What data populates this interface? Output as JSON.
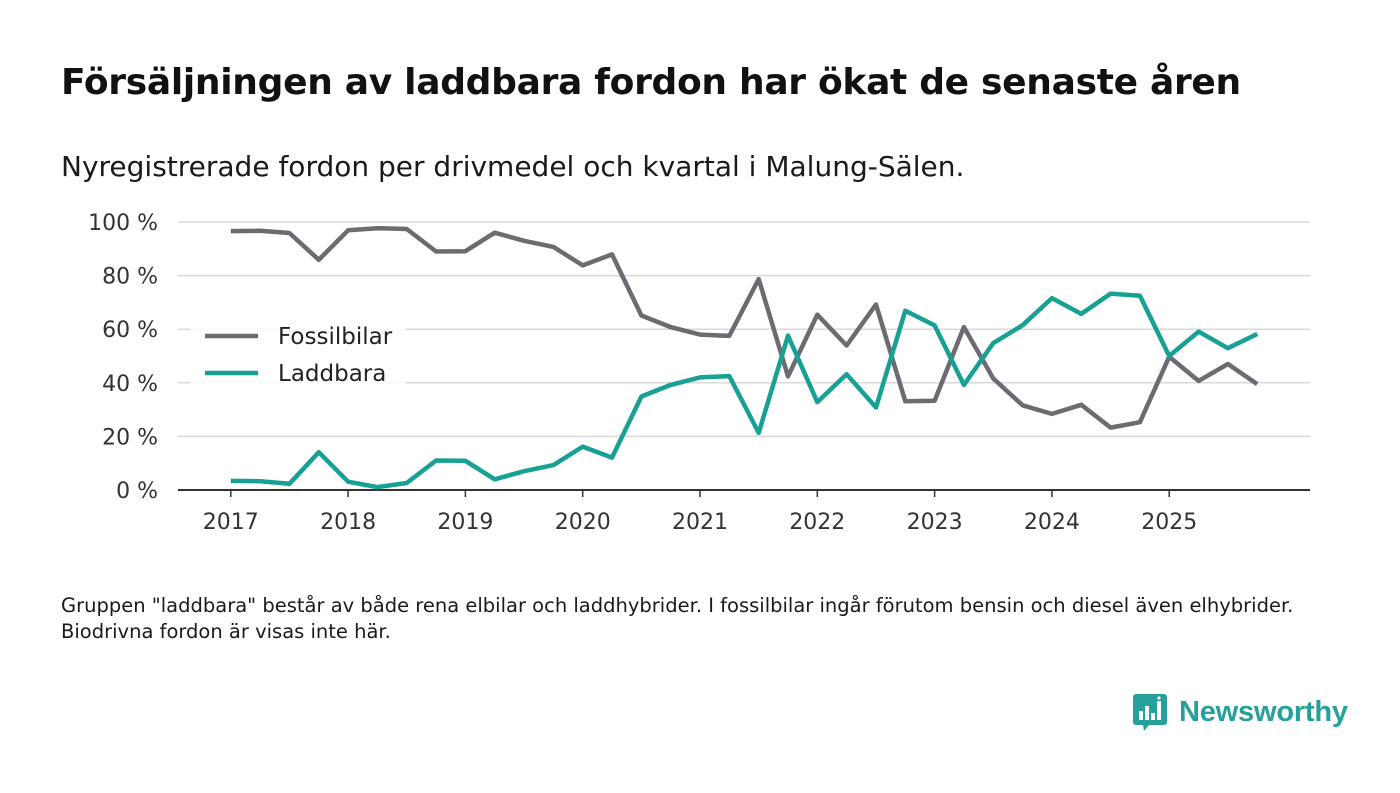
{
  "title": "Försäljningen av laddbara fordon har ökat de senaste åren",
  "subtitle": "Nyregistrerade fordon per drivmedel och kvartal i Malung-Sälen.",
  "note": "Gruppen \"laddbara\" består av både rena elbilar och laddhybrider. I fossilbilar ingår förutom bensin och diesel även elhybrider. Biodrivna fordon är visas inte här.",
  "brand": {
    "name": "Newsworthy",
    "icon": "newsworthy-logo-icon",
    "color": "#26a09a"
  },
  "chart_data": {
    "type": "line",
    "title": "Försäljningen av laddbara fordon har ökat de senaste åren",
    "xlabel": "",
    "ylabel": "",
    "ylim": [
      0,
      100
    ],
    "y_ticks": [
      0,
      20,
      40,
      60,
      80,
      100
    ],
    "y_tick_labels": [
      "0 %",
      "20 %",
      "40 %",
      "60 %",
      "80 %",
      "100 %"
    ],
    "x_ticks": [
      2017,
      2018,
      2019,
      2020,
      2021,
      2022,
      2023,
      2024,
      2025
    ],
    "x_tick_labels": [
      "2017",
      "2018",
      "2019",
      "2020",
      "2021",
      "2022",
      "2023",
      "2024",
      "2025"
    ],
    "xlim": [
      2016.55,
      2026.2
    ],
    "grid": true,
    "legend_position": "middle-left",
    "x": [
      2017.0,
      2017.25,
      2017.5,
      2017.75,
      2018.0,
      2018.25,
      2018.5,
      2018.75,
      2019.0,
      2019.25,
      2019.5,
      2019.75,
      2020.0,
      2020.25,
      2020.5,
      2020.75,
      2021.0,
      2021.25,
      2021.5,
      2021.75,
      2022.0,
      2022.25,
      2022.5,
      2022.75,
      2023.0,
      2023.25,
      2023.5,
      2023.75,
      2024.0,
      2024.25,
      2024.5,
      2024.75,
      2025.0,
      2025.25,
      2025.5,
      2025.75
    ],
    "series": [
      {
        "name": "Fossilbilar",
        "color": "#6d6a72",
        "values": [
          96.6,
          96.7,
          95.9,
          85.9,
          96.9,
          97.7,
          97.4,
          89.0,
          89.1,
          96.0,
          93.0,
          90.7,
          83.8,
          87.9,
          65.1,
          60.8,
          58.0,
          57.5,
          78.7,
          42.4,
          65.4,
          53.9,
          69.2,
          33.1,
          33.3,
          60.8,
          41.6,
          31.6,
          28.4,
          31.8,
          23.3,
          25.3,
          49.7,
          40.7,
          47.0,
          39.5
        ]
      },
      {
        "name": "Laddbara",
        "color": "#17a195",
        "values": [
          3.4,
          3.3,
          2.3,
          14.1,
          3.1,
          1.1,
          2.6,
          11.0,
          10.9,
          4.0,
          7.0,
          9.3,
          16.2,
          12.1,
          34.9,
          39.2,
          42.0,
          42.5,
          21.3,
          57.6,
          32.8,
          43.2,
          30.8,
          66.9,
          61.4,
          39.2,
          54.8,
          61.5,
          71.6,
          65.7,
          73.3,
          72.5,
          50.0,
          59.1,
          52.9,
          58.2
        ]
      }
    ]
  }
}
